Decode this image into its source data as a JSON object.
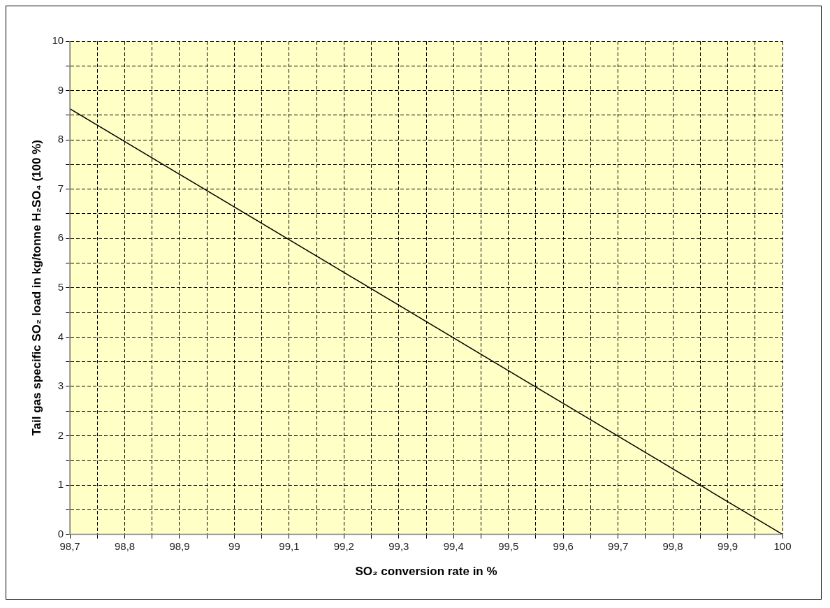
{
  "chart_data": {
    "type": "line",
    "xlabel": "SO₂ conversion rate in %",
    "ylabel": "Tail gas specific SO₂ load in kg/tonne H₂SO₄ (100 %)",
    "x": [
      98.7,
      100
    ],
    "series": [
      {
        "color": "#000000",
        "values": [
          8.63,
          0
        ]
      }
    ],
    "marker": "none",
    "line_style": "solid",
    "grid": true,
    "legend": false,
    "xlim": [
      98.7,
      100
    ],
    "ylim": [
      0,
      10
    ],
    "xticks": [
      {
        "value": 98.7,
        "label": "98,7"
      },
      {
        "value": 98.75,
        "label": null
      },
      {
        "value": 98.8,
        "label": "98,8"
      },
      {
        "value": 98.85,
        "label": null
      },
      {
        "value": 98.9,
        "label": "98,9"
      },
      {
        "value": 98.95,
        "label": null
      },
      99,
      {
        "value": 99.05,
        "label": null
      },
      {
        "value": 99.1,
        "label": "99,1"
      },
      {
        "value": 99.15,
        "label": null
      },
      {
        "value": 99.2,
        "label": "99,2"
      },
      {
        "value": 99.25,
        "label": null
      },
      {
        "value": 99.3,
        "label": "99,3"
      },
      {
        "value": 99.35,
        "label": null
      },
      {
        "value": 99.4,
        "label": "99,4"
      },
      {
        "value": 99.45,
        "label": null
      },
      {
        "value": 99.5,
        "label": "99,5"
      },
      {
        "value": 99.55,
        "label": null
      },
      {
        "value": 99.6,
        "label": "99,6"
      },
      {
        "value": 99.65,
        "label": null
      },
      {
        "value": 99.7,
        "label": "99,7"
      },
      {
        "value": 99.75,
        "label": null
      },
      {
        "value": 99.8,
        "label": "99,8"
      },
      {
        "value": 99.85,
        "label": null
      },
      {
        "value": 99.9,
        "label": "99,9"
      },
      {
        "value": 99.95,
        "label": null
      },
      100
    ],
    "yticks": [
      0,
      {
        "value": 0.5,
        "label": null
      },
      1,
      {
        "value": 1.5,
        "label": null
      },
      2,
      {
        "value": 2.5,
        "label": null
      },
      3,
      {
        "value": 3.5,
        "label": null
      },
      4,
      {
        "value": 4.5,
        "label": null
      },
      5,
      {
        "value": 5.5,
        "label": null
      },
      6,
      {
        "value": 6.5,
        "label": null
      },
      7,
      {
        "value": 7.5,
        "label": null
      },
      8,
      {
        "value": 8.5,
        "label": null
      },
      9,
      {
        "value": 9.5,
        "label": null
      },
      10
    ]
  }
}
